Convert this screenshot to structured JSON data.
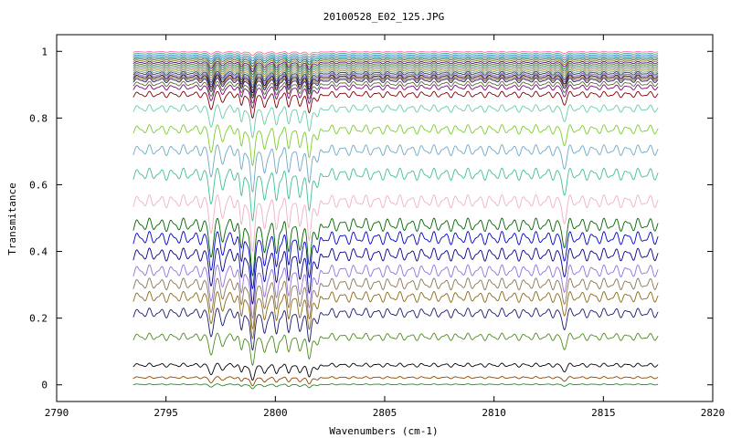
{
  "chart_data": {
    "type": "line",
    "title": "20100528_E02_125.JPG",
    "xlabel": "Wavenumbers (cm-1)",
    "ylabel": "Transmitance",
    "xlim": [
      2790,
      2820
    ],
    "ylim": [
      -0.05,
      1.05
    ],
    "x_range": [
      2793.5,
      2817.5
    ],
    "xticks": [
      "2790",
      "2795",
      "2800",
      "2805",
      "2810",
      "2815",
      "2820"
    ],
    "yticks": [
      "0",
      "0.2",
      "0.4",
      "0.6",
      "0.8",
      "1"
    ],
    "grid": false,
    "legend": "none",
    "series_note_values": "baseline transmittance of each stacked spectrum (approximate)",
    "series": [
      {
        "baseline": 1.0,
        "color": "#ff69b4"
      },
      {
        "baseline": 0.995,
        "color": "#3cb371"
      },
      {
        "baseline": 0.99,
        "color": "#4169e1"
      },
      {
        "baseline": 0.985,
        "color": "#008b8b"
      },
      {
        "baseline": 0.98,
        "color": "#2f4f4f"
      },
      {
        "baseline": 0.975,
        "color": "#808000"
      },
      {
        "baseline": 0.97,
        "color": "#4b0082"
      },
      {
        "baseline": 0.965,
        "color": "#556b2f"
      },
      {
        "baseline": 0.96,
        "color": "#2e8b57"
      },
      {
        "baseline": 0.955,
        "color": "#708090"
      },
      {
        "baseline": 0.95,
        "color": "#b8860b"
      },
      {
        "baseline": 0.945,
        "color": "#5f9ea0"
      },
      {
        "baseline": 0.94,
        "color": "#333333"
      },
      {
        "baseline": 0.935,
        "color": "#6a5acd"
      },
      {
        "baseline": 0.93,
        "color": "#000000"
      },
      {
        "baseline": 0.925,
        "color": "#a0522d"
      },
      {
        "baseline": 0.92,
        "color": "#191970"
      },
      {
        "baseline": 0.91,
        "color": "#556b2f"
      },
      {
        "baseline": 0.9,
        "color": "#800080"
      },
      {
        "baseline": 0.88,
        "color": "#800000"
      },
      {
        "baseline": 0.84,
        "color": "#66cdaa"
      },
      {
        "baseline": 0.78,
        "color": "#7ccd2c"
      },
      {
        "baseline": 0.72,
        "color": "#6fa8c8"
      },
      {
        "baseline": 0.65,
        "color": "#40c090"
      },
      {
        "baseline": 0.57,
        "color": "#f0b0c8"
      },
      {
        "baseline": 0.5,
        "color": "#006400"
      },
      {
        "baseline": 0.46,
        "color": "#0000cd"
      },
      {
        "baseline": 0.41,
        "color": "#00008b"
      },
      {
        "baseline": 0.36,
        "color": "#9370db"
      },
      {
        "baseline": 0.32,
        "color": "#8b7355"
      },
      {
        "baseline": 0.28,
        "color": "#8b6914"
      },
      {
        "baseline": 0.23,
        "color": "#191970"
      },
      {
        "baseline": 0.155,
        "color": "#4a8b1c"
      },
      {
        "baseline": 0.065,
        "color": "#000000"
      },
      {
        "baseline": 0.025,
        "color": "#8b4500"
      },
      {
        "baseline": 0.003,
        "color": "#228b22"
      }
    ]
  }
}
